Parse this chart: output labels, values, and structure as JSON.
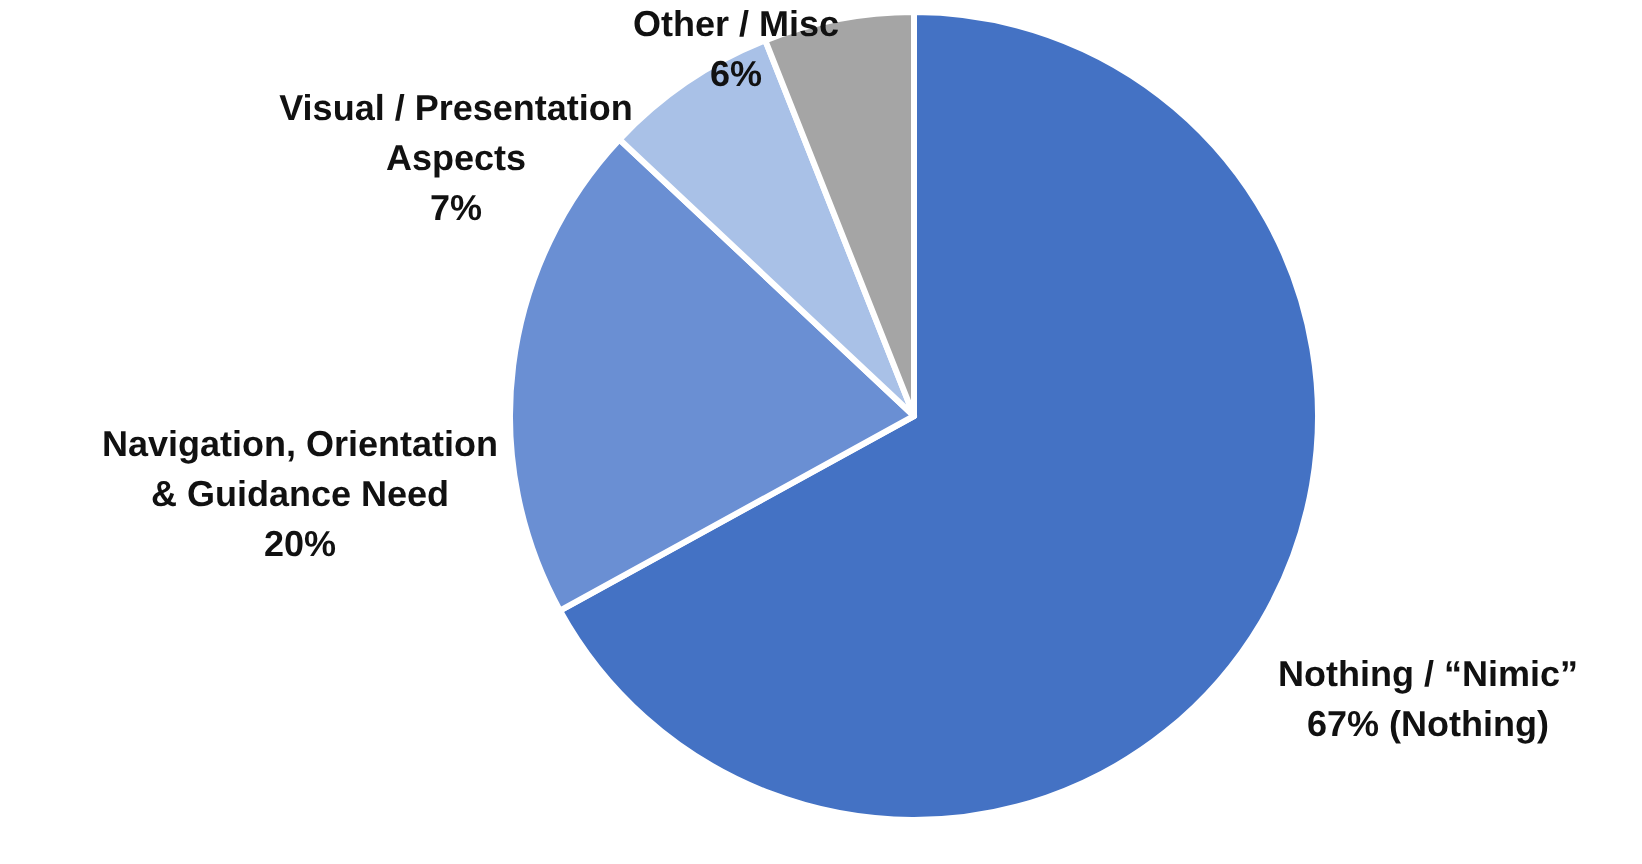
{
  "chart_data": {
    "type": "pie",
    "categories": [
      "Nothing / “Nimic”",
      "Navigation, Orientation & Guidance Need",
      "Visual / Presentation Aspects",
      "Other / Misc"
    ],
    "values": [
      67,
      20,
      7,
      6
    ],
    "value_labels": [
      "67% (Nothing)",
      "20%",
      "7%",
      "6%"
    ],
    "colors": [
      "#4472c4",
      "#6a8fd3",
      "#a9c1e7",
      "#a5a5a5"
    ]
  }
}
